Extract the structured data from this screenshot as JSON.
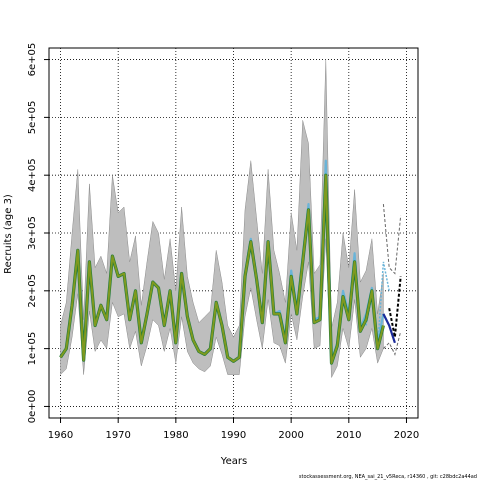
{
  "chart_data": {
    "type": "line",
    "xlabel": "Years",
    "ylabel": "Recruits (age 3)",
    "xlim": [
      1958,
      2022
    ],
    "ylim": [
      -20000,
      620000
    ],
    "x_ticks": [
      1960,
      1970,
      1980,
      1990,
      2000,
      2010,
      2020
    ],
    "x_tick_labels": [
      "1960",
      "1970",
      "1980",
      "1990",
      "2000",
      "2010",
      "2020"
    ],
    "y_ticks": [
      0,
      100000,
      200000,
      300000,
      400000,
      500000,
      600000
    ],
    "y_tick_labels": [
      "0e+00",
      "1e+05",
      "2e+05",
      "3e+05",
      "4e+05",
      "5e+05",
      "6e+05"
    ],
    "grid": true,
    "footer": "stockassessment.org, NEA_sai_21_v5Reca, r14360 , git: c28bdc2a44ad",
    "colors": {
      "ci_band": "#bebebe",
      "ci_band_border": "#8a8a8a",
      "main_line": "#7f9a1f",
      "main_line_edge": "#1f7a3a",
      "alt_line": "#6ab4d8",
      "blue_line": "#1a2a9a",
      "dashed_line": "#000000",
      "grid": "#000000"
    },
    "x": [
      1960,
      1961,
      1962,
      1963,
      1964,
      1965,
      1966,
      1967,
      1968,
      1969,
      1970,
      1971,
      1972,
      1973,
      1974,
      1975,
      1976,
      1977,
      1978,
      1979,
      1980,
      1981,
      1982,
      1983,
      1984,
      1985,
      1986,
      1987,
      1988,
      1989,
      1990,
      1991,
      1992,
      1993,
      1994,
      1995,
      1996,
      1997,
      1998,
      1999,
      2000,
      2001,
      2002,
      2003,
      2004,
      2005,
      2006,
      2007,
      2008,
      2009,
      2010,
      2011,
      2012,
      2013,
      2014,
      2015,
      2016
    ],
    "series": [
      {
        "values": [
          85000,
          100000,
          175000,
          270000,
          80000,
          250000,
          140000,
          175000,
          150000,
          260000,
          225000,
          230000,
          150000,
          200000,
          110000,
          160000,
          215000,
          205000,
          140000,
          200000,
          110000,
          230000,
          155000,
          115000,
          95000,
          90000,
          100000,
          180000,
          140000,
          85000,
          78000,
          85000,
          225000,
          285000,
          220000,
          145000,
          285000,
          160000,
          160000,
          110000,
          225000,
          160000,
          250000,
          340000,
          145000,
          150000,
          400000,
          75000,
          105000,
          190000,
          150000,
          250000,
          130000,
          150000,
          200000,
          100000,
          140000
        ]
      },
      {
        "values": [
          85000,
          100000,
          175000,
          270000,
          80000,
          250000,
          140000,
          175000,
          150000,
          260000,
          225000,
          230000,
          150000,
          200000,
          110000,
          160000,
          215000,
          205000,
          140000,
          200000,
          110000,
          230000,
          155000,
          115000,
          95000,
          90000,
          100000,
          180000,
          140000,
          85000,
          78000,
          85000,
          230000,
          290000,
          225000,
          150000,
          285000,
          160000,
          165000,
          120000,
          235000,
          170000,
          260000,
          350000,
          150000,
          155000,
          425000,
          80000,
          110000,
          200000,
          160000,
          265000,
          135000,
          160000,
          205000,
          110000,
          160000
        ]
      }
    ],
    "ci_upper": [
      140000,
      180000,
      300000,
      410000,
      150000,
      385000,
      240000,
      260000,
      230000,
      400000,
      335000,
      345000,
      250000,
      295000,
      175000,
      250000,
      320000,
      300000,
      220000,
      290000,
      200000,
      345000,
      225000,
      180000,
      145000,
      155000,
      165000,
      270000,
      215000,
      140000,
      120000,
      140000,
      340000,
      425000,
      325000,
      230000,
      410000,
      270000,
      230000,
      180000,
      335000,
      270000,
      495000,
      455000,
      230000,
      245000,
      600000,
      135000,
      180000,
      300000,
      240000,
      375000,
      215000,
      235000,
      290000,
      160000,
      230000
    ],
    "ci_lower": [
      55000,
      65000,
      120000,
      195000,
      55000,
      165000,
      95000,
      115000,
      100000,
      180000,
      155000,
      160000,
      100000,
      130000,
      70000,
      105000,
      150000,
      140000,
      95000,
      135000,
      75000,
      155000,
      95000,
      75000,
      65000,
      60000,
      70000,
      120000,
      90000,
      55000,
      55000,
      55000,
      155000,
      205000,
      150000,
      100000,
      185000,
      110000,
      105000,
      75000,
      160000,
      115000,
      190000,
      250000,
      100000,
      105000,
      290000,
      50000,
      70000,
      135000,
      100000,
      185000,
      85000,
      100000,
      135000,
      75000,
      100000
    ],
    "blue_series": {
      "x": [
        2016,
        2017,
        2018
      ],
      "values": [
        160000,
        140000,
        110000
      ]
    },
    "dashed_series": {
      "x": [
        2017,
        2018,
        2019
      ],
      "values": [
        170000,
        120000,
        225000
      ]
    },
    "dashed_ci_upper": {
      "x": [
        2016,
        2017,
        2018,
        2019
      ],
      "values": [
        350000,
        240000,
        230000,
        330000
      ]
    },
    "dashed_ci_lower": {
      "x": [
        2016,
        2017,
        2018,
        2019
      ],
      "values": [
        100000,
        110000,
        90000,
        130000
      ]
    },
    "alt_series": {
      "x": [
        2013,
        2014,
        2015,
        2016,
        2017
      ],
      "values": [
        140000,
        190000,
        100000,
        250000,
        200000
      ]
    }
  }
}
